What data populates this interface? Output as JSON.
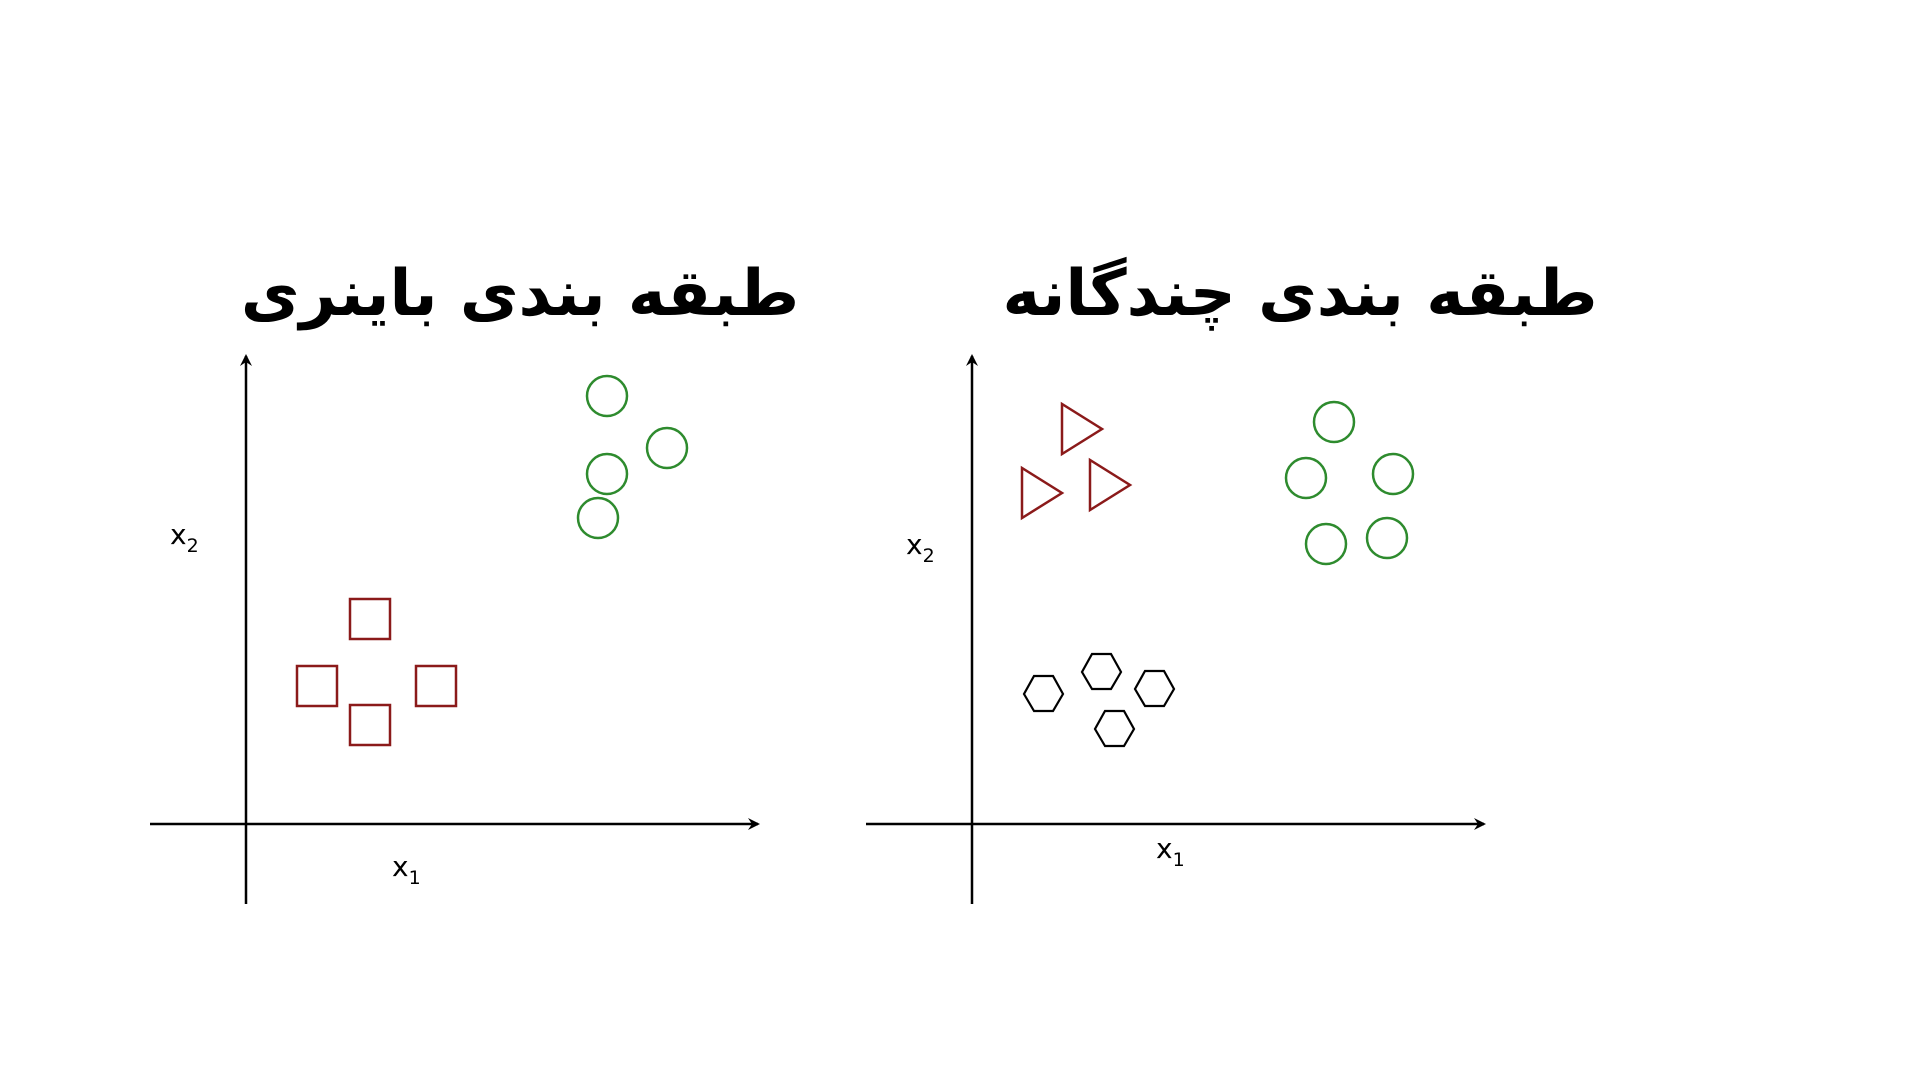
{
  "colors": {
    "background": "#ffffff",
    "axis": "#000000",
    "square": "#8b1a1a",
    "triangle": "#8b1a1a",
    "circle": "#2e8b2e",
    "hexagon": "#000000"
  },
  "panels": [
    {
      "id": "binary",
      "title": "طبقه بندی باینری",
      "x_label": {
        "base": "x",
        "sub": "1"
      },
      "y_label": {
        "base": "x",
        "sub": "2"
      },
      "classes": [
        {
          "shape": "square",
          "color_key": "square",
          "count": 4
        },
        {
          "shape": "circle",
          "color_key": "circle",
          "count": 4
        }
      ]
    },
    {
      "id": "multi",
      "title": "طبقه بندی چندگانه",
      "x_label": {
        "base": "x",
        "sub": "1"
      },
      "y_label": {
        "base": "x",
        "sub": "2"
      },
      "classes": [
        {
          "shape": "triangle",
          "color_key": "triangle",
          "count": 3
        },
        {
          "shape": "circle",
          "color_key": "circle",
          "count": 5
        },
        {
          "shape": "hexagon",
          "color_key": "hexagon",
          "count": 4
        }
      ]
    }
  ]
}
